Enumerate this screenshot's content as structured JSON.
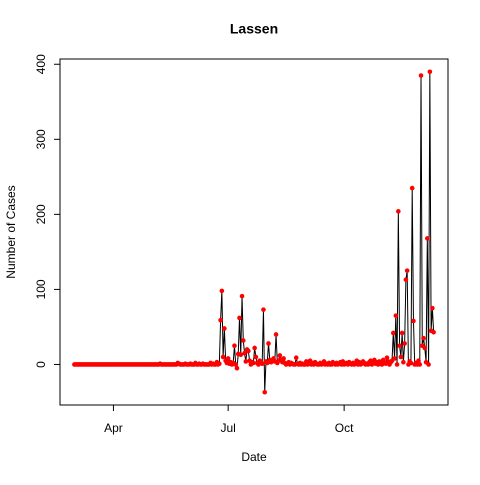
{
  "chart_data": {
    "type": "line",
    "title": "Lassen",
    "xlabel": "Date",
    "ylabel": "Number of Cases",
    "categories": [
      null,
      null,
      null,
      null,
      null,
      null,
      null,
      null,
      null,
      null,
      null,
      null,
      null,
      null,
      null,
      null,
      null,
      null,
      null,
      null,
      null,
      null,
      null,
      null,
      null,
      null,
      null,
      null,
      null,
      null,
      null,
      "Apr",
      null,
      null,
      null,
      null,
      null,
      null,
      null,
      null,
      null,
      null,
      null,
      null,
      null,
      null,
      null,
      null,
      null,
      null,
      null,
      null,
      null,
      null,
      null,
      null,
      null,
      null,
      null,
      null,
      null,
      null,
      null,
      null,
      null,
      null,
      null,
      null,
      null,
      null,
      null,
      null,
      null,
      null,
      null,
      null,
      null,
      null,
      null,
      null,
      null,
      null,
      null,
      null,
      null,
      null,
      null,
      null,
      null,
      null,
      null,
      null,
      null,
      null,
      null,
      null,
      null,
      null,
      null,
      null,
      null,
      null,
      null,
      null,
      null,
      null,
      null,
      null,
      null,
      null,
      null,
      null,
      null,
      null,
      null,
      null,
      null,
      null,
      null,
      null,
      null,
      null,
      "Jul",
      null,
      null,
      null,
      null,
      null,
      null,
      null,
      null,
      null,
      null,
      null,
      null,
      null,
      null,
      null,
      null,
      null,
      null,
      null,
      null,
      null,
      null,
      null,
      null,
      null,
      null,
      null,
      null,
      null,
      null,
      null,
      null,
      null,
      null,
      null,
      null,
      null,
      null,
      null,
      null,
      null,
      null,
      null,
      null,
      null,
      null,
      null,
      null,
      null,
      null,
      null,
      null,
      null,
      null,
      null,
      null,
      null,
      null,
      null,
      null,
      null,
      null,
      null,
      null,
      null,
      null,
      null,
      null,
      null,
      null,
      null,
      null,
      null,
      null,
      null,
      null,
      null,
      null,
      null,
      null,
      null,
      null,
      null,
      null,
      null,
      null,
      null,
      null,
      null,
      null,
      null,
      "Oct",
      null,
      null,
      null,
      null,
      null,
      null,
      null,
      null,
      null,
      null,
      null,
      null,
      null,
      null,
      null,
      null,
      null,
      null,
      null,
      null,
      null,
      null,
      null,
      null,
      null,
      null,
      null,
      null,
      null,
      null,
      null,
      null,
      null,
      null,
      null,
      null,
      null,
      null,
      null,
      null,
      null,
      null,
      null,
      null,
      null,
      null,
      null,
      null,
      null,
      null,
      null,
      null,
      null,
      null,
      null,
      null,
      null,
      null,
      null,
      null,
      null,
      null,
      null,
      null,
      null,
      null,
      null,
      null,
      null,
      null,
      null
    ],
    "series": [
      {
        "name": "Lassen",
        "color": "#ff0000",
        "line_color": "#000000",
        "values": [
          0,
          0,
          0,
          0,
          0,
          0,
          0,
          0,
          0,
          0,
          0,
          0,
          0,
          0,
          0,
          0,
          0,
          0,
          0,
          0,
          0,
          0,
          0,
          0,
          0,
          0,
          0,
          0,
          0,
          0,
          0,
          0,
          0,
          0,
          0,
          0,
          0,
          0,
          0,
          0,
          0,
          0,
          0,
          0,
          0,
          0,
          0,
          0,
          0,
          0,
          0,
          0,
          0,
          0,
          0,
          0,
          0,
          0,
          0,
          0,
          0,
          0,
          0,
          0,
          0,
          0,
          0,
          0,
          1,
          0,
          0,
          0,
          0,
          0,
          0,
          0,
          0,
          0,
          0,
          0,
          0,
          0,
          2,
          1,
          0,
          0,
          0,
          0,
          1,
          0,
          0,
          0,
          1,
          0,
          0,
          0,
          2,
          0,
          0,
          1,
          0,
          0,
          1,
          0,
          0,
          0,
          0,
          0,
          2,
          0,
          1,
          0,
          0,
          3,
          0,
          1,
          59,
          98,
          10,
          48,
          5,
          2,
          8,
          1,
          3,
          0,
          2,
          25,
          0,
          -5,
          14,
          62,
          13,
          91,
          32,
          15,
          4,
          20,
          18,
          5,
          0,
          3,
          2,
          22,
          10,
          2,
          0,
          5,
          3,
          1,
          73,
          -37,
          4,
          2,
          28,
          6,
          3,
          5,
          8,
          4,
          40,
          2,
          5,
          12,
          6,
          3,
          8,
          2,
          0,
          1,
          3,
          0,
          2,
          1,
          0,
          0,
          9,
          1,
          0,
          2,
          0,
          1,
          0,
          0,
          4,
          0,
          1,
          5,
          0,
          2,
          0,
          3,
          1,
          0,
          0,
          2,
          0,
          1,
          4,
          0,
          1,
          0,
          2,
          0,
          0,
          3,
          1,
          0,
          2,
          0,
          1,
          3,
          0,
          4,
          0,
          1,
          2,
          0,
          3,
          1,
          0,
          2,
          0,
          1,
          5,
          0,
          3,
          0,
          1,
          4,
          2,
          0,
          1,
          0,
          3,
          5,
          0,
          2,
          6,
          1,
          3,
          0,
          4,
          2,
          0,
          6,
          3,
          1,
          9,
          4,
          0,
          3,
          5,
          42,
          8,
          65,
          0,
          204,
          25,
          10,
          42,
          3,
          28,
          113,
          125,
          0,
          4,
          2,
          235,
          58,
          0,
          2,
          0,
          5,
          0,
          385,
          25,
          35,
          22,
          3,
          168,
          0,
          390,
          45,
          75,
          43
        ]
      }
    ],
    "ylim": [
      -54,
      407
    ],
    "yticks": [
      0,
      100,
      200,
      300,
      400
    ],
    "grid": false
  }
}
